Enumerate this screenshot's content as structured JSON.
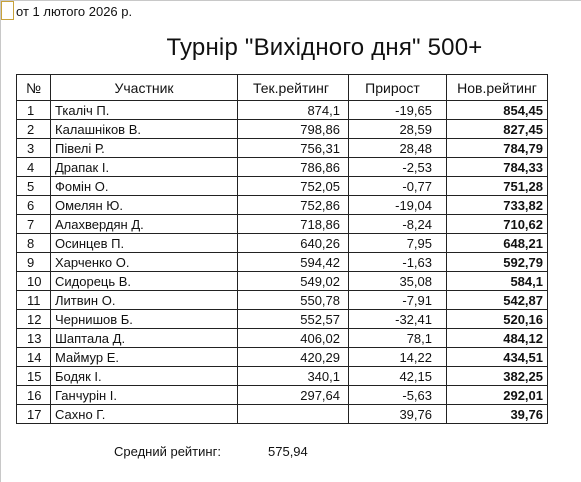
{
  "header": {
    "date": "от 1 лютого 2026 р.",
    "title": "Турнір \"Вихідного дня\" 500+"
  },
  "table": {
    "columns": [
      "№",
      "Участник",
      "Тек.рейтинг",
      "Прирост",
      "Нов.рейтинг"
    ],
    "rows": [
      [
        "1",
        "Ткаліч П.",
        "874,1",
        "-19,65",
        "854,45"
      ],
      [
        "2",
        "Калашніков В.",
        "798,86",
        "28,59",
        "827,45"
      ],
      [
        "3",
        "Півелі Р.",
        "756,31",
        "28,48",
        "784,79"
      ],
      [
        "4",
        "Драпак І.",
        "786,86",
        "-2,53",
        "784,33"
      ],
      [
        "5",
        "Фомін О.",
        "752,05",
        "-0,77",
        "751,28"
      ],
      [
        "6",
        "Омелян Ю.",
        "752,86",
        "-19,04",
        "733,82"
      ],
      [
        "7",
        "Алахвердян Д.",
        "718,86",
        "-8,24",
        "710,62"
      ],
      [
        "8",
        "Осинцев П.",
        "640,26",
        "7,95",
        "648,21"
      ],
      [
        "9",
        "Харченко О.",
        "594,42",
        "-1,63",
        "592,79"
      ],
      [
        "10",
        "Сидорець В.",
        "549,02",
        "35,08",
        "584,1"
      ],
      [
        "11",
        "Литвин О.",
        "550,78",
        "-7,91",
        "542,87"
      ],
      [
        "12",
        "Чернишов Б.",
        "552,57",
        "-32,41",
        "520,16"
      ],
      [
        "13",
        "Шаптала Д.",
        "406,02",
        "78,1",
        "484,12"
      ],
      [
        "14",
        "Маймур Е.",
        "420,29",
        "14,22",
        "434,51"
      ],
      [
        "15",
        "Бодяк І.",
        "340,1",
        "42,15",
        "382,25"
      ],
      [
        "16",
        "Ганчурін І.",
        "297,64",
        "-5,63",
        "292,01"
      ],
      [
        "17",
        "Сахно Г.",
        "",
        "39,76",
        "39,76"
      ]
    ]
  },
  "summary": {
    "label": "Средний рейтинг:",
    "value": "575,94"
  }
}
